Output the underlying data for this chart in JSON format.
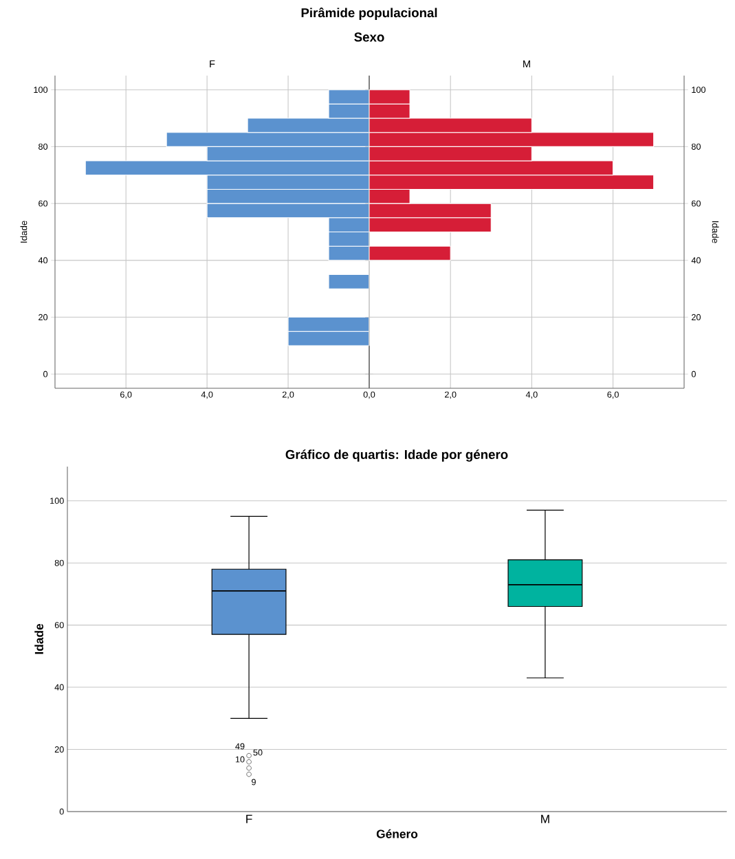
{
  "chart_data": [
    {
      "type": "histogram",
      "orientation": "horizontal",
      "title": "Pirâmide populacional",
      "subtitle": "Sexo",
      "annotations": [
        "F"
      ],
      "ylabel": "Idade",
      "color": "#5b92cf",
      "grid": true,
      "bins": [
        10,
        15,
        20,
        25,
        30,
        35,
        40,
        45,
        50,
        55,
        60,
        65,
        70,
        75,
        80,
        85,
        90,
        95,
        100
      ],
      "values": [
        2,
        2,
        0,
        0,
        1,
        0,
        1,
        1,
        1,
        4,
        4,
        4,
        7,
        4,
        5,
        3,
        1,
        1
      ],
      "xlim": [
        7.75,
        0
      ],
      "xticks": [
        {
          "value": 0,
          "label": "0,0"
        },
        {
          "value": 2,
          "label": "2,0"
        },
        {
          "value": 4,
          "label": "4,0"
        },
        {
          "value": 6,
          "label": "6,0"
        }
      ],
      "ylim": [
        -5,
        105
      ],
      "yticks": [
        0,
        20,
        40,
        60,
        80,
        100
      ]
    },
    {
      "type": "histogram",
      "orientation": "horizontal",
      "annotations": [
        "M"
      ],
      "ylabel": "Idade",
      "color": "#d61e37",
      "grid": true,
      "bins": [
        10,
        15,
        20,
        25,
        30,
        35,
        40,
        45,
        50,
        55,
        60,
        65,
        70,
        75,
        80,
        85,
        90,
        95,
        100
      ],
      "values": [
        0,
        0,
        0,
        0,
        0,
        0,
        2,
        0,
        3,
        3,
        1,
        7,
        6,
        4,
        7,
        4,
        1,
        1
      ],
      "xlim": [
        0,
        7.75
      ],
      "xticks": [
        {
          "value": 2,
          "label": "2,0"
        },
        {
          "value": 4,
          "label": "4,0"
        },
        {
          "value": 6,
          "label": "6,0"
        }
      ],
      "ylim": [
        -5,
        105
      ],
      "yticks": [
        0,
        20,
        40,
        60,
        80,
        100
      ]
    },
    {
      "type": "box",
      "title": "Gráfico de quartis: Idade por género",
      "xlabel": "Género",
      "ylabel": "Idade",
      "categories": [
        "F",
        "M"
      ],
      "colors": [
        "#5b92cf",
        "#00b39f"
      ],
      "grid": "y",
      "boxes": [
        {
          "low": 30,
          "q1": 57,
          "median": 71,
          "q3": 78,
          "high": 95,
          "outliers": [
            18,
            16,
            14,
            12
          ]
        },
        {
          "low": 43,
          "q1": 66,
          "median": 73,
          "q3": 81,
          "high": 97
        }
      ],
      "ylim": [
        0,
        111
      ],
      "yticks": [
        0,
        20,
        40,
        60,
        80,
        100
      ],
      "annotations": [
        "49",
        "50",
        "10",
        "9"
      ]
    }
  ]
}
